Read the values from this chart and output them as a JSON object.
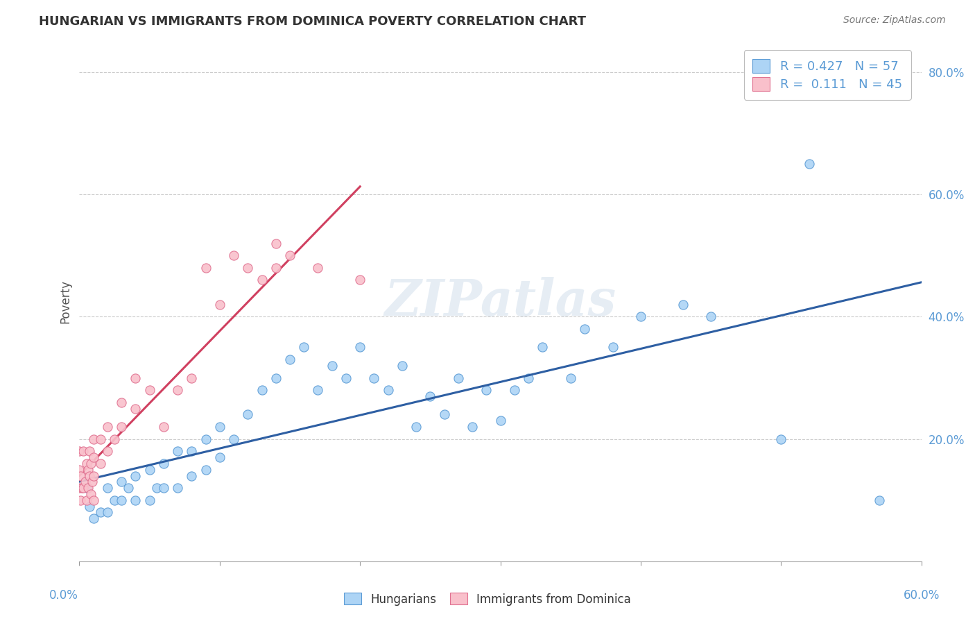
{
  "title": "HUNGARIAN VS IMMIGRANTS FROM DOMINICA POVERTY CORRELATION CHART",
  "source": "Source: ZipAtlas.com",
  "ylabel": "Poverty",
  "xlim": [
    0.0,
    0.6
  ],
  "ylim": [
    0.0,
    0.85
  ],
  "blue_color": "#ADD4F5",
  "blue_edge_color": "#5B9BD5",
  "pink_color": "#F9C0CB",
  "pink_edge_color": "#E07090",
  "blue_line_color": "#2E5FA3",
  "pink_line_color": "#D04060",
  "gray_dash_color": "#C8A0A0",
  "R_blue": 0.427,
  "N_blue": 57,
  "R_pink": 0.111,
  "N_pink": 45,
  "blue_x": [
    0.005,
    0.007,
    0.01,
    0.015,
    0.02,
    0.02,
    0.025,
    0.03,
    0.03,
    0.035,
    0.04,
    0.04,
    0.05,
    0.05,
    0.055,
    0.06,
    0.06,
    0.07,
    0.07,
    0.08,
    0.08,
    0.09,
    0.09,
    0.1,
    0.1,
    0.11,
    0.12,
    0.13,
    0.14,
    0.15,
    0.16,
    0.17,
    0.18,
    0.19,
    0.2,
    0.21,
    0.22,
    0.23,
    0.24,
    0.25,
    0.26,
    0.27,
    0.28,
    0.29,
    0.3,
    0.31,
    0.32,
    0.33,
    0.35,
    0.36,
    0.38,
    0.4,
    0.43,
    0.45,
    0.5,
    0.52,
    0.57
  ],
  "blue_y": [
    0.12,
    0.09,
    0.07,
    0.08,
    0.08,
    0.12,
    0.1,
    0.1,
    0.13,
    0.12,
    0.1,
    0.14,
    0.1,
    0.15,
    0.12,
    0.12,
    0.16,
    0.12,
    0.18,
    0.14,
    0.18,
    0.15,
    0.2,
    0.17,
    0.22,
    0.2,
    0.24,
    0.28,
    0.3,
    0.33,
    0.35,
    0.28,
    0.32,
    0.3,
    0.35,
    0.3,
    0.28,
    0.32,
    0.22,
    0.27,
    0.24,
    0.3,
    0.22,
    0.28,
    0.23,
    0.28,
    0.3,
    0.35,
    0.3,
    0.38,
    0.35,
    0.4,
    0.42,
    0.4,
    0.2,
    0.65,
    0.1
  ],
  "pink_x": [
    0.0,
    0.0,
    0.0,
    0.001,
    0.001,
    0.002,
    0.003,
    0.003,
    0.004,
    0.005,
    0.005,
    0.006,
    0.006,
    0.007,
    0.007,
    0.008,
    0.008,
    0.009,
    0.01,
    0.01,
    0.01,
    0.01,
    0.015,
    0.015,
    0.02,
    0.02,
    0.025,
    0.03,
    0.03,
    0.04,
    0.04,
    0.05,
    0.06,
    0.07,
    0.08,
    0.09,
    0.1,
    0.11,
    0.12,
    0.13,
    0.14,
    0.14,
    0.15,
    0.17,
    0.2
  ],
  "pink_y": [
    0.12,
    0.15,
    0.18,
    0.1,
    0.14,
    0.12,
    0.12,
    0.18,
    0.13,
    0.1,
    0.16,
    0.12,
    0.15,
    0.14,
    0.18,
    0.11,
    0.16,
    0.13,
    0.1,
    0.14,
    0.17,
    0.2,
    0.16,
    0.2,
    0.18,
    0.22,
    0.2,
    0.22,
    0.26,
    0.25,
    0.3,
    0.28,
    0.22,
    0.28,
    0.3,
    0.48,
    0.42,
    0.5,
    0.48,
    0.46,
    0.48,
    0.52,
    0.5,
    0.48,
    0.46
  ],
  "watermark": "ZIPatlas",
  "legend_label_blue": "Hungarians",
  "legend_label_pink": "Immigrants from Dominica"
}
